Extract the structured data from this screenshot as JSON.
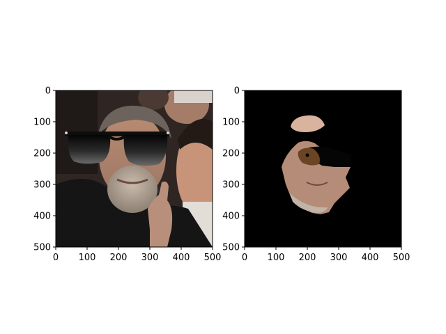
{
  "figure": {
    "background": "#ffffff",
    "panels": [
      {
        "id": "left",
        "content": "photo-with-sunglasses-overlay",
        "x_ticks": [
          "0",
          "100",
          "200",
          "300",
          "400",
          "500"
        ],
        "y_ticks": [
          "0",
          "100",
          "200",
          "300",
          "400",
          "500"
        ]
      },
      {
        "id": "right",
        "content": "segmented-face-mask-on-black",
        "x_ticks": [
          "0",
          "100",
          "200",
          "300",
          "400",
          "500"
        ],
        "y_ticks": [
          "0",
          "100",
          "200",
          "300",
          "400",
          "500"
        ]
      }
    ]
  },
  "colors": {
    "mask_background": "#000000",
    "skin": "#c99a7e",
    "beard": "#bdb0a2",
    "lens": "#1a1a1a",
    "jacket": "#161616",
    "crowd_bg": "#3a302c"
  }
}
